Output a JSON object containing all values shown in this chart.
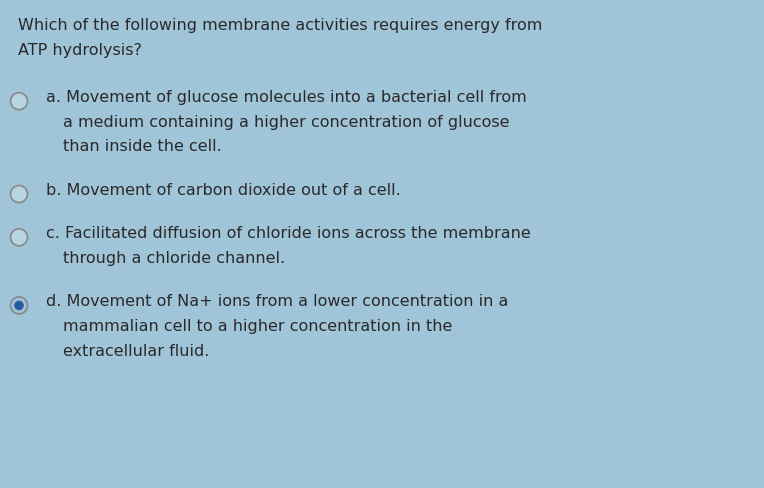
{
  "background_color": "#a0c4d8",
  "text_color": "#2a2a2a",
  "title_lines": [
    "Which of the following membrane activities requires energy from",
    "ATP hydrolysis?"
  ],
  "options": [
    {
      "lines": [
        "a. Movement of glucose molecules into a bacterial cell from",
        "a medium containing a higher concentration of glucose",
        "than inside the cell."
      ],
      "dot_filled": false
    },
    {
      "lines": [
        "b. Movement of carbon dioxide out of a cell."
      ],
      "dot_filled": false
    },
    {
      "lines": [
        "c. Facilitated diffusion of chloride ions across the membrane",
        "through a chloride channel."
      ],
      "dot_filled": false
    },
    {
      "lines": [
        "d. Movement of Na+ ions from a lower concentration in a",
        "mammalian cell to a higher concentration in the",
        "extracellular fluid."
      ],
      "dot_filled": true
    }
  ],
  "title_fontsize": 11.5,
  "option_fontsize": 11.5,
  "radio_outer_color": "#888888",
  "radio_selected_fill": "#2a5ba0",
  "radio_unselected_fill": "#b8d4e0"
}
